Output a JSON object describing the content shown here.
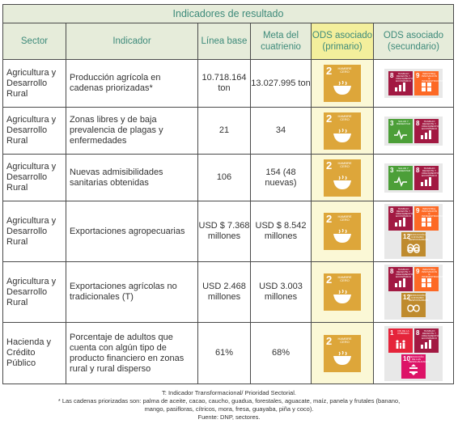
{
  "title": "Indicadores de resultado",
  "headers": {
    "sector": "Sector",
    "indicator": "Indicador",
    "baseline": "Línea base",
    "target": "Meta del cuatrienio",
    "ods_primary": "ODS asociado (primario)",
    "ods_secondary": "ODS asociado (secundario)"
  },
  "ods_primary_label": {
    "number": "2",
    "text": "HAMBRE CERO"
  },
  "rows": [
    {
      "sector": "Agricultura y Desarrollo Rural",
      "indicator": "Producción agrícola en cadenas priorizadas*",
      "baseline": "10.718.164 ton",
      "target": "13.027.995 ton",
      "secondary": [
        "8",
        "9"
      ]
    },
    {
      "sector": "Agricultura y Desarrollo Rural",
      "indicator": "Zonas libres y de baja prevalencia de plagas y enfermedades",
      "baseline": "21",
      "target": "34",
      "secondary": [
        "3",
        "8"
      ]
    },
    {
      "sector": "Agricultura y Desarrollo Rural",
      "indicator": "Nuevas admisibilidades sanitarias obtenidas",
      "baseline": "106",
      "target": "154 (48 nuevas)",
      "secondary": [
        "3",
        "8"
      ]
    },
    {
      "sector": "Agricultura y Desarrollo Rural",
      "indicator": "Exportaciones agropecuarias",
      "baseline": "USD $ 7.368 millones",
      "target": "USD $ 8.542 millones",
      "secondary": [
        "8",
        "9",
        "12"
      ]
    },
    {
      "sector": "Agricultura y Desarrollo Rural",
      "indicator": "Exportaciones agrícolas no tradicionales (T)",
      "baseline": "USD 2.468 millones",
      "target": "USD 3.003 millones",
      "secondary": [
        "8",
        "9",
        "12"
      ]
    },
    {
      "sector": "Hacienda y Crédito Público",
      "indicator": "Porcentaje de adultos que cuenta con algún tipo de producto financiero en zonas rural y rural disperso",
      "baseline": "61%",
      "target": "68%",
      "secondary": [
        "1",
        "8",
        "10"
      ]
    }
  ],
  "ods_secondary_labels": {
    "1": "FIN DE LA POBREZA",
    "3": "SALUD Y BIENESTAR",
    "8": "TRABAJO DECENTE Y CRECIMIENTO ECONÓMICO",
    "9": "INDUSTRIA, INNOVACIÓN E INFRAESTRUCTURA",
    "10": "REDUCCIÓN DE LAS DESIGUALDADES",
    "12": "PRODUCCIÓN Y CONSUMO RESPONSABLES"
  },
  "footnotes": {
    "line1": "T: Indicador Transformacional/ Prioridad Sectorial.",
    "line2": "* Las cadenas priorizadas son: palma de aceite, cacao, caucho, guadua, forestales, aguacate, maíz, panela y frutales (banano,",
    "line3": "mango, pasifloras, cítricos, mora, fresa, guayaba, piña y coco).",
    "line4": "Fuente: DNP, sectores."
  },
  "colors": {
    "ods1": "#e5243b",
    "ods2": "#dda63a",
    "ods3": "#4c9f38",
    "ods8": "#a21942",
    "ods9": "#fd6925",
    "ods10": "#dd1367",
    "ods12": "#bf8b2e",
    "header_bg": "#e6ecda",
    "header_text": "#3d8a7a",
    "primary_header_bg": "#f3ef9c"
  }
}
